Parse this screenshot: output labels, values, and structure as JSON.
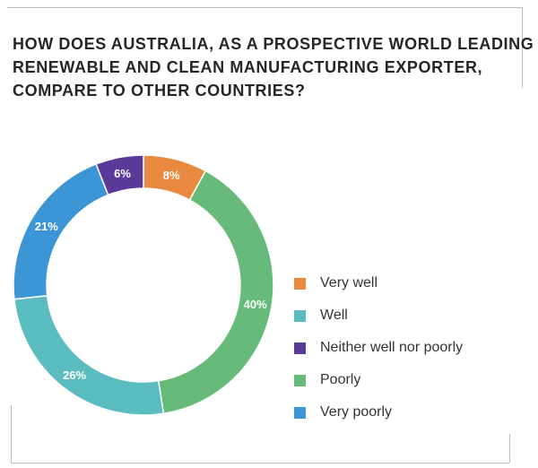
{
  "title_lines": [
    "HOW DOES AUSTRALIA, AS A PROSPECTIVE WORLD LEADING",
    "RENEWABLE AND CLEAN MANUFACTURING EXPORTER,",
    "COMPARE TO OTHER COUNTRIES?"
  ],
  "chart_data": {
    "type": "pie",
    "variant": "donut",
    "title": "HOW DOES AUSTRALIA, AS A PROSPECTIVE WORLD LEADING RENEWABLE AND CLEAN MANUFACTURING EXPORTER, COMPARE TO OTHER COUNTRIES?",
    "categories": [
      "Very well",
      "Well",
      "Neither well nor poorly",
      "Poorly",
      "Very poorly"
    ],
    "values": [
      8,
      26,
      6,
      40,
      21
    ],
    "value_labels": [
      "8%",
      "26%",
      "6%",
      "40%",
      "21%"
    ],
    "slice_order_clockwise_from_top": [
      "Very well",
      "Poorly",
      "Well",
      "Very poorly",
      "Neither well nor poorly"
    ],
    "colors": {
      "Very well": "#e8893f",
      "Well": "#5bbcc0",
      "Neither well nor poorly": "#5a3b9a",
      "Poorly": "#66bb7a",
      "Very poorly": "#3c95d4"
    },
    "legend_position": "right"
  }
}
